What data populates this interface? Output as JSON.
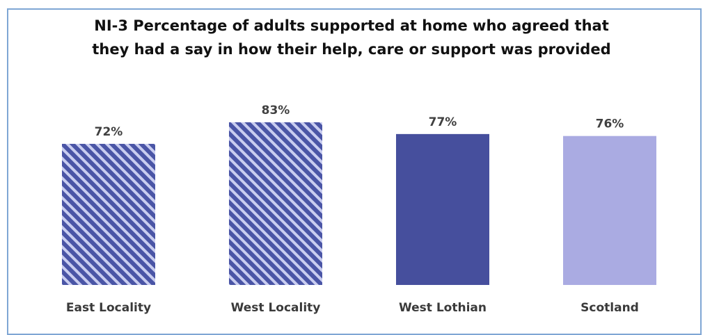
{
  "chart_data": {
    "type": "bar",
    "title_lines": [
      "NI-3 Percentage of adults supported at home who agreed that",
      "they had a say in how their help, care or support was provided"
    ],
    "categories": [
      "East Locality",
      "West Locality",
      "West Lothian",
      "Scotland"
    ],
    "values": [
      72,
      83,
      77,
      76
    ],
    "value_labels": [
      "72%",
      "83%",
      "77%",
      "76%"
    ],
    "unit": "%",
    "ylim": [
      0,
      100
    ],
    "grid": false,
    "legend": "none",
    "bar_styles": [
      {
        "fill": "hatched",
        "color": "#4a55a6",
        "stripe": "#c9cdf0"
      },
      {
        "fill": "hatched",
        "color": "#4a55a6",
        "stripe": "#c9cdf0"
      },
      {
        "fill": "solid",
        "color": "#464f9d"
      },
      {
        "fill": "solid",
        "color": "#aaabe2"
      }
    ]
  }
}
